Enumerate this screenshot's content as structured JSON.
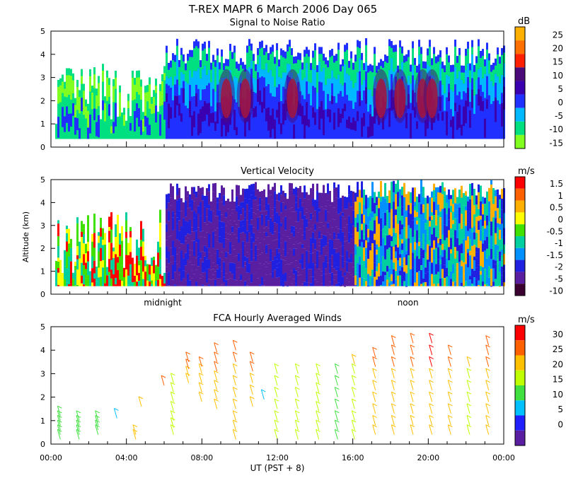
{
  "figure": {
    "title": "T-REX  MAPR  6 March 2006 Day 065",
    "ylabel": "Altitude (km)",
    "xlabel": "UT  (PST + 8)",
    "x_ticks": [
      "00:00",
      "04:00",
      "08:00",
      "12:00",
      "16:00",
      "20:00",
      "00:00"
    ],
    "x_range_hours": [
      0,
      24
    ],
    "y_ticks": [
      "0",
      "1",
      "2",
      "3",
      "4",
      "5"
    ],
    "y_range_km": [
      0,
      5
    ],
    "annotations": {
      "midnight": "midnight",
      "noon": "noon"
    },
    "annotation_hours": {
      "midnight": 6.0,
      "noon": 19.0
    }
  },
  "chart_data": [
    {
      "type": "heatmap",
      "title": "Signal to Noise Ratio",
      "colorbar_unit": "dB",
      "colorbar_labels": [
        "25",
        "20",
        "15",
        "10",
        "5",
        "0",
        "-5",
        "-10",
        "-15"
      ],
      "colorbar_values": [
        25,
        20,
        15,
        10,
        5,
        0,
        -5,
        -10,
        -15
      ],
      "colorbar_colors": [
        "#ffb000",
        "#ff7000",
        "#ff2000",
        "#4a0a7a",
        "#3a00b0",
        "#2030ff",
        "#00b8ff",
        "#00e080",
        "#80ff20"
      ],
      "ylim": [
        0,
        5
      ],
      "xlim": [
        0,
        24
      ],
      "description_features": {
        "echo_top_km": 4.7,
        "bright_high_snr_periods_hours": [
          9.3,
          10.3,
          12.8,
          17.5,
          18.5,
          19.7,
          20.2
        ]
      }
    },
    {
      "type": "heatmap",
      "title": "Vertical Velocity",
      "colorbar_unit": "m/s",
      "colorbar_labels": [
        "1.5",
        "1",
        "0.5",
        "0",
        "-0.5",
        "-1",
        "-1.5",
        "-2",
        "-5",
        "-10"
      ],
      "colorbar_values": [
        1.5,
        1,
        0.5,
        0,
        -0.5,
        -1,
        -1.5,
        -2,
        -5,
        -10
      ],
      "colorbar_colors": [
        "#ff0000",
        "#ff6000",
        "#ffb000",
        "#ffff00",
        "#40e000",
        "#00d0a0",
        "#0090ff",
        "#2020e0",
        "#5a1fa0",
        "#3a0030"
      ],
      "ylim": [
        0,
        5
      ],
      "xlim": [
        0,
        24
      ]
    },
    {
      "type": "scatter",
      "title": "FCA Hourly Averaged Winds",
      "colorbar_unit": "m/s",
      "colorbar_labels": [
        "30",
        "25",
        "20",
        "15",
        "10",
        "5",
        "0"
      ],
      "colorbar_values": [
        30,
        25,
        20,
        15,
        10,
        5,
        0
      ],
      "colorbar_colors": [
        "#ff0000",
        "#ff6000",
        "#ffc000",
        "#c0ff00",
        "#40e040",
        "#00c0ff",
        "#2020ff",
        "#5a1fa0"
      ],
      "ylim": [
        0,
        5
      ],
      "xlim": [
        0,
        24
      ],
      "barbs": [
        {
          "hour": 0.5,
          "km": [
            0.2,
            0.4,
            0.6,
            0.8,
            1.0,
            1.2
          ],
          "speed": 12
        },
        {
          "hour": 1.5,
          "km": [
            0.2,
            0.4,
            0.6,
            0.8,
            1.0
          ],
          "speed": 12
        },
        {
          "hour": 2.5,
          "km": [
            0.4,
            0.6,
            0.8,
            1.0
          ],
          "speed": 13
        },
        {
          "hour": 3.5,
          "km": [
            1.1
          ],
          "speed": 5
        },
        {
          "hour": 4.5,
          "km": [
            0.2,
            0.4
          ],
          "speed": 20
        },
        {
          "hour": 4.8,
          "km": [
            1.6
          ],
          "speed": 24
        },
        {
          "hour": 6.0,
          "km": [
            2.5
          ],
          "speed": 27
        },
        {
          "hour": 6.5,
          "km": [
            0.4,
            0.7,
            1.0,
            1.4,
            1.8,
            2.2,
            2.6
          ],
          "speed": 15
        },
        {
          "hour": 7.3,
          "km": [
            2.6,
            2.9,
            3.2,
            3.5
          ],
          "speed": 20
        },
        {
          "hour": 8.0,
          "km": [
            1.8,
            2.2,
            2.6,
            3.0,
            3.3
          ],
          "speed": 20
        },
        {
          "hour": 8.8,
          "km": [
            1.5,
            1.9,
            2.3,
            2.7,
            3.1,
            3.5,
            3.9
          ],
          "speed": 22
        },
        {
          "hour": 9.8,
          "km": [
            0.2,
            0.6,
            1.0,
            1.5,
            2.0,
            2.5,
            3.0,
            3.5,
            4.0
          ],
          "speed": 22
        },
        {
          "hour": 10.7,
          "km": [
            1.6,
            2.1,
            2.6,
            3.1,
            3.5
          ],
          "speed": 21
        },
        {
          "hour": 11.3,
          "km": [
            1.9
          ],
          "speed": 6
        },
        {
          "hour": 12.0,
          "km": [
            0.2,
            0.6,
            1.0,
            1.5,
            2.0,
            2.5,
            3.0
          ],
          "speed": 19
        },
        {
          "hour": 13.1,
          "km": [
            0.2,
            0.6,
            1.0,
            1.5,
            2.0,
            2.5,
            3.0
          ],
          "speed": 16
        },
        {
          "hour": 14.2,
          "km": [
            0.2,
            0.6,
            1.0,
            1.4,
            1.8,
            2.2,
            2.6,
            3.0
          ],
          "speed": 17
        },
        {
          "hour": 15.2,
          "km": [
            0.2,
            0.6,
            1.0,
            1.5,
            2.0,
            2.5,
            3.0
          ],
          "speed": 14
        },
        {
          "hour": 16.1,
          "km": [
            0.2,
            0.6,
            1.0,
            1.5,
            2.0,
            2.5,
            3.0,
            3.4
          ],
          "speed": 17
        },
        {
          "hour": 17.2,
          "km": [
            0.4,
            0.8,
            1.3,
            1.8,
            2.3,
            2.8,
            3.3,
            3.7
          ],
          "speed": 20
        },
        {
          "hour": 18.2,
          "km": [
            0.4,
            0.8,
            1.3,
            1.8,
            2.3,
            2.8,
            3.3,
            3.8,
            4.2
          ],
          "speed": 22
        },
        {
          "hour": 19.2,
          "km": [
            0.4,
            0.8,
            1.3,
            1.8,
            2.3,
            2.8,
            3.3,
            3.8,
            4.3
          ],
          "speed": 23
        },
        {
          "hour": 20.2,
          "km": [
            0.4,
            0.8,
            1.3,
            1.8,
            2.3,
            2.8,
            3.3,
            3.8,
            4.3
          ],
          "speed": 24
        },
        {
          "hour": 21.2,
          "km": [
            0.4,
            0.8,
            1.3,
            1.8,
            2.3,
            2.8,
            3.3,
            3.8
          ],
          "speed": 22
        },
        {
          "hour": 22.2,
          "km": [
            0.4,
            0.8,
            1.3,
            1.8,
            2.3,
            2.8,
            3.3
          ],
          "speed": 18
        },
        {
          "hour": 23.2,
          "km": [
            0.4,
            0.8,
            1.3,
            1.8,
            2.3,
            2.8,
            3.3,
            3.8,
            4.2
          ],
          "speed": 20
        }
      ]
    }
  ]
}
